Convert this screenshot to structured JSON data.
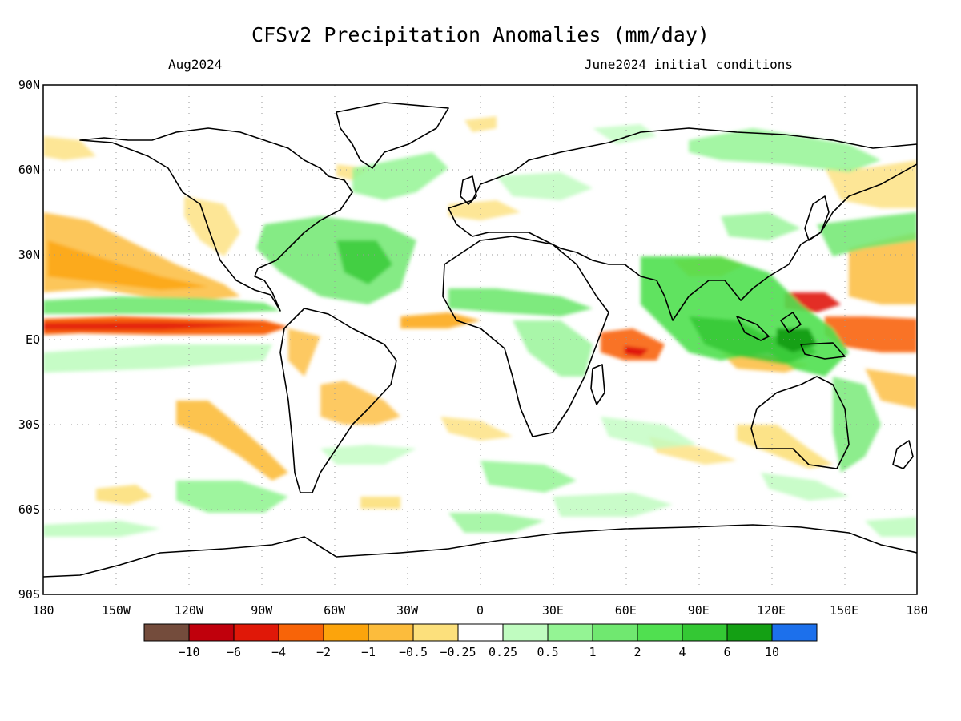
{
  "title": "CFSv2 Precipitation Anomalies (mm/day)",
  "valid_month": "Aug2024",
  "initial_conditions": "June2024 initial conditions",
  "lat_labels": [
    "90N",
    "60N",
    "30N",
    "EQ",
    "30S",
    "60S",
    "90S"
  ],
  "lon_labels": [
    "180",
    "150W",
    "120W",
    "90W",
    "60W",
    "30W",
    "0",
    "30E",
    "60E",
    "90E",
    "120E",
    "150E",
    "180"
  ],
  "colorbar": {
    "colors": [
      "#744c3c",
      "#c0000c",
      "#e01808",
      "#f86408",
      "#fca40c",
      "#fcbc3c",
      "#fce07c",
      "#ffffff",
      "#c0fcc0",
      "#94f494",
      "#70e870",
      "#50e050",
      "#34c834",
      "#14a014",
      "#1c70ec"
    ],
    "labels": [
      "−10",
      "−6",
      "−4",
      "−2",
      "−1",
      "−0.5",
      "−0.25",
      "0.25",
      "0.5",
      "1",
      "2",
      "4",
      "6",
      "10"
    ]
  },
  "map": {
    "projection": "plate-carree",
    "lon_range": [
      -180,
      180
    ],
    "lat_range": [
      -90,
      90
    ],
    "gridlines": "dotted"
  }
}
